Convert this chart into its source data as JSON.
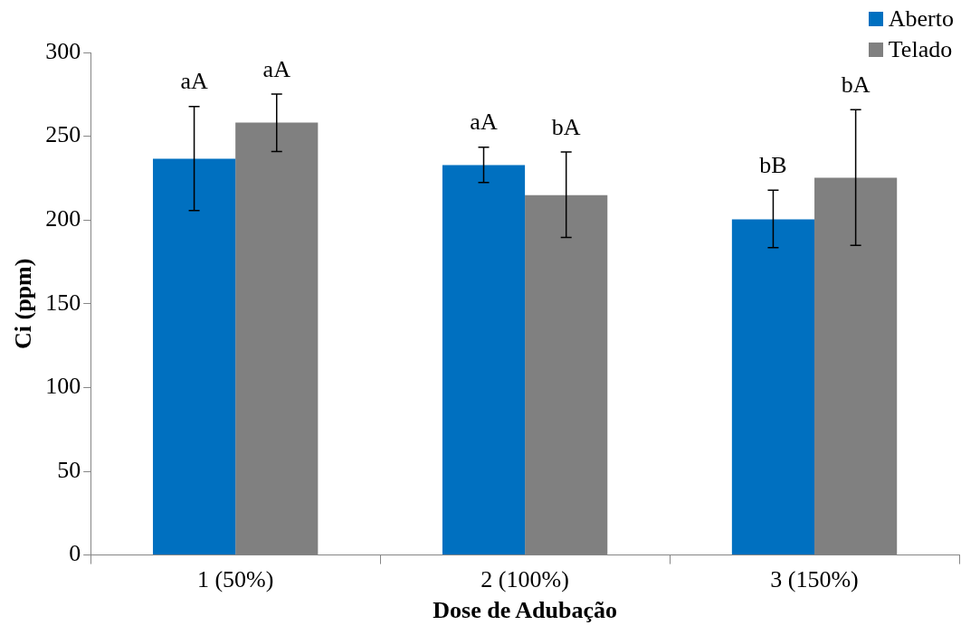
{
  "chart_data": {
    "type": "bar",
    "xlabel": "Dose de Adubação",
    "ylabel": "Ci (ppm)",
    "categories": [
      "1 (50%)",
      "2 (100%)",
      "3 (150%)"
    ],
    "series": [
      {
        "name": "Aberto",
        "color": "#0070c0",
        "values": [
          236.5,
          232.8,
          200.4
        ],
        "errors": [
          [
            205.7,
            267.8
          ],
          [
            222.4,
            243.5
          ],
          [
            183.5,
            217.8
          ]
        ]
      },
      {
        "name": "Telado",
        "color": "#808080",
        "values": [
          258.2,
          214.8,
          225.2
        ],
        "errors": [
          [
            240.9,
            275.2
          ],
          [
            189.6,
            240.6
          ],
          [
            184.8,
            265.9
          ]
        ]
      }
    ],
    "ylim": [
      0,
      300
    ],
    "yticks": [
      0,
      50,
      100,
      150,
      200,
      250,
      300
    ],
    "grid": false,
    "legend": "top right",
    "annotations": [
      "aA",
      "aA",
      "aA",
      "bA",
      "bB",
      "bA"
    ]
  }
}
